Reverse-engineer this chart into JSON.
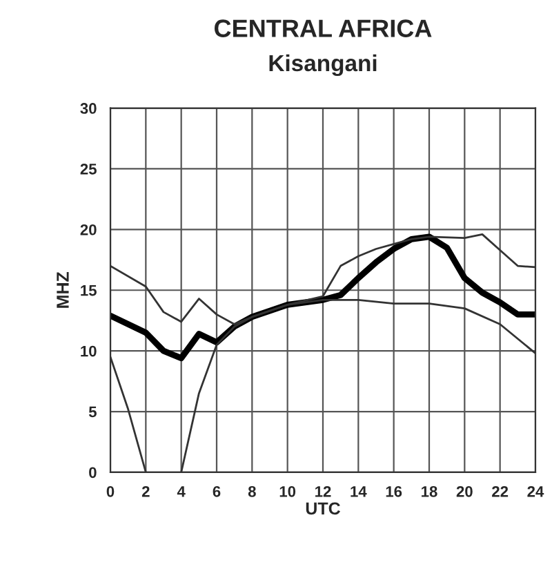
{
  "chart_data": {
    "type": "line",
    "title": "CENTRAL AFRICA",
    "subtitle": "Kisangani",
    "xlabel": "UTC",
    "ylabel": "MHZ",
    "series": [
      {
        "color": "#000000",
        "x": [
          0,
          2,
          3,
          4,
          5,
          6,
          7,
          8,
          10,
          12,
          13,
          14,
          15,
          16,
          17,
          18,
          19,
          20,
          21,
          22,
          23,
          24
        ],
        "values": [
          12.9,
          11.5,
          10,
          9.4,
          11.4,
          10.7,
          12,
          12.8,
          13.8,
          14.2,
          14.6,
          16,
          17.3,
          18.4,
          19.2,
          19.4,
          18.5,
          16,
          14.8,
          14,
          13,
          13
        ]
      },
      {
        "color": "#333333",
        "x": [
          0,
          2,
          3,
          4,
          5,
          6,
          7,
          8,
          10,
          12,
          13,
          14,
          15,
          16,
          17,
          18,
          20,
          21,
          22,
          23,
          24
        ],
        "values": [
          17,
          15.3,
          13.2,
          12.4,
          14.3,
          13,
          12.2,
          12.8,
          13.8,
          14.5,
          17,
          17.8,
          18.4,
          18.8,
          19.2,
          19.4,
          19.3,
          19.6,
          18.3,
          17,
          16.9
        ]
      },
      {
        "color": "#333333",
        "x": [
          0,
          1,
          2,
          3,
          4,
          5,
          6,
          7,
          8,
          10,
          12,
          14,
          16,
          18,
          20,
          22,
          24
        ],
        "values": [
          9.5,
          5.2,
          0,
          null,
          0,
          6.5,
          10.5,
          12,
          12.8,
          13.8,
          14.2,
          14.2,
          13.9,
          13.9,
          13.5,
          12.2,
          9.8
        ]
      }
    ],
    "xlim": [
      0,
      24
    ],
    "ylim": [
      0,
      30
    ],
    "xticks": [
      0,
      2,
      4,
      6,
      8,
      10,
      12,
      14,
      16,
      18,
      20,
      22,
      24
    ],
    "yticks": [
      0,
      5,
      10,
      15,
      20,
      25,
      30
    ],
    "grid": true,
    "legend": false,
    "marker": "none",
    "line_style": "solid"
  }
}
